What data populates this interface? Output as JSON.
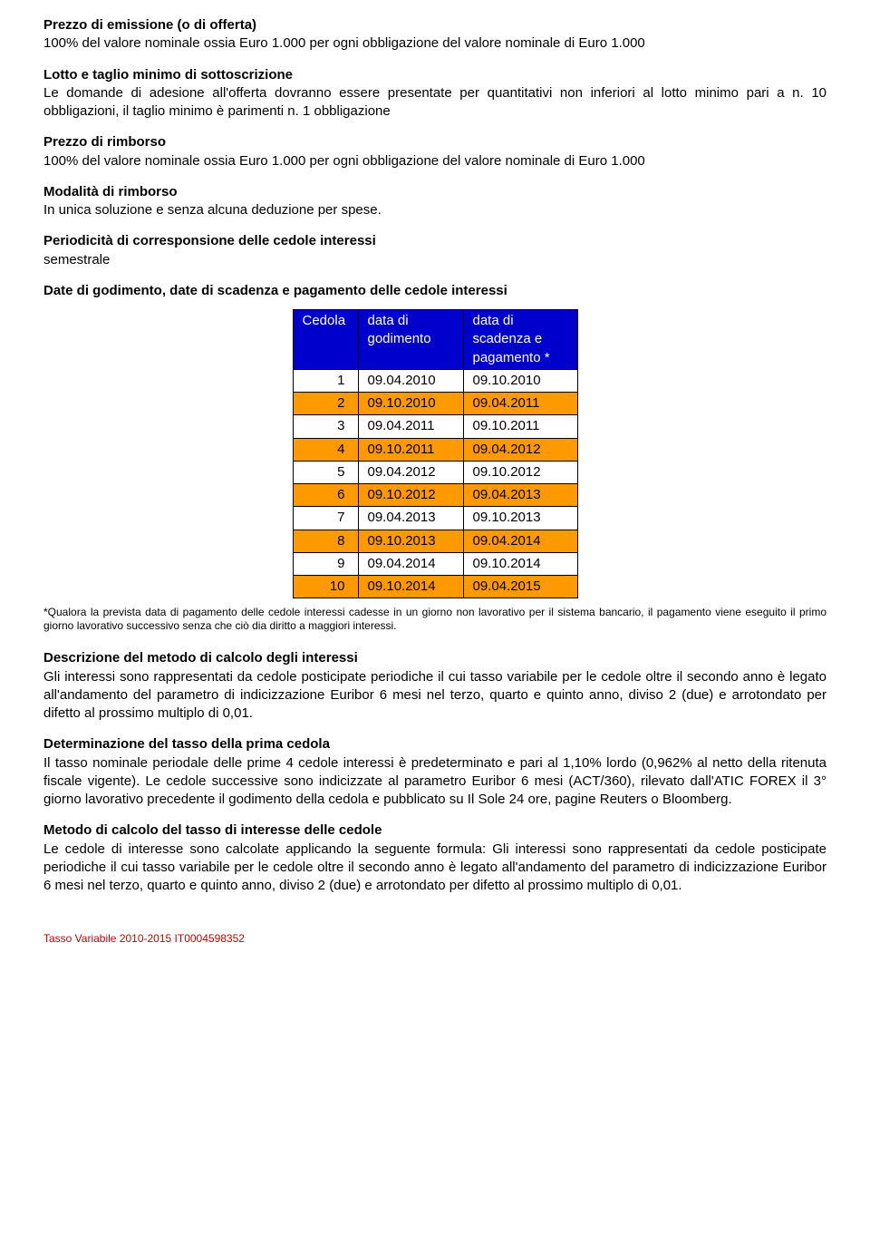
{
  "colors": {
    "blue": "#0000cc",
    "orange": "#ff9900",
    "white": "#ffffff",
    "black": "#000000",
    "red": "#cc0000"
  },
  "sections": {
    "prezzo_emissione": {
      "title": "Prezzo di emissione (o di offerta)",
      "body": "100% del valore nominale ossia Euro 1.000 per ogni obbligazione del valore nominale di Euro 1.000"
    },
    "lotto": {
      "title": "Lotto e taglio minimo di sottoscrizione",
      "body": "Le domande di adesione all'offerta dovranno essere presentate per quantitativi non inferiori al lotto minimo pari a n. 10 obbligazioni, il taglio minimo è parimenti n. 1 obbligazione"
    },
    "prezzo_rimborso": {
      "title": "Prezzo di rimborso",
      "body": "100% del valore nominale ossia Euro 1.000 per ogni obbligazione del valore nominale di Euro 1.000"
    },
    "modalita": {
      "title": "Modalità di rimborso",
      "body": "In unica soluzione e senza alcuna deduzione per spese."
    },
    "periodicita": {
      "title": "Periodicità di corresponsione delle cedole interessi",
      "body": "semestrale"
    },
    "date_heading": "Date di godimento, date di scadenza e pagamento delle cedole interessi",
    "footnote": "*Qualora la prevista data di pagamento delle cedole interessi cadesse in un giorno non lavorativo per il sistema bancario, il pagamento viene eseguito il primo giorno lavorativo successivo senza che ciò dia diritto a maggiori interessi.",
    "descrizione": {
      "title": "Descrizione del metodo di calcolo degli interessi",
      "body": "Gli interessi sono rappresentati da cedole posticipate periodiche il cui tasso variabile per le cedole oltre il secondo anno è legato all'andamento del parametro di indicizzazione Euribor 6 mesi nel terzo, quarto e quinto anno, diviso 2 (due) e arrotondato per difetto al prossimo multiplo di 0,01."
    },
    "determinazione": {
      "title": "Determinazione del tasso della prima cedola",
      "body": "Il tasso nominale periodale delle prime 4 cedole interessi è predeterminato e pari al 1,10% lordo (0,962% al netto della ritenuta fiscale vigente). Le cedole successive sono indicizzate al parametro Euribor 6 mesi (ACT/360), rilevato dall'ATIC FOREX il 3° giorno lavorativo precedente il godimento della cedola e pubblicato su Il Sole 24 ore, pagine Reuters o Bloomberg."
    },
    "metodo": {
      "title": "Metodo di calcolo del tasso di interesse delle cedole",
      "body": "Le cedole di interesse sono calcolate applicando la seguente formula: Gli interessi sono rappresentati da cedole posticipate periodiche il cui tasso variabile per le cedole oltre il secondo anno è legato all'andamento del parametro di indicizzazione Euribor 6 mesi nel terzo, quarto e quinto anno, diviso 2 (due) e arrotondato per difetto al prossimo multiplo di 0,01."
    }
  },
  "table": {
    "header": {
      "c1": "Cedola",
      "c2": "data di godimento",
      "c3": "data di scadenza e pagamento *"
    },
    "header_bg": "#0000cc",
    "col_widths": [
      "72px",
      "116px",
      "126px"
    ],
    "rows": [
      {
        "n": "1",
        "g": "09.04.2010",
        "s": "09.10.2010",
        "hl": false
      },
      {
        "n": "2",
        "g": "09.10.2010",
        "s": "09.04.2011",
        "hl": true
      },
      {
        "n": "3",
        "g": "09.04.2011",
        "s": "09.10.2011",
        "hl": false
      },
      {
        "n": "4",
        "g": "09.10.2011",
        "s": "09.04.2012",
        "hl": true
      },
      {
        "n": "5",
        "g": "09.04.2012",
        "s": "09.10.2012",
        "hl": false
      },
      {
        "n": "6",
        "g": "09.10.2012",
        "s": "09.04.2013",
        "hl": true
      },
      {
        "n": "7",
        "g": "09.04.2013",
        "s": "09.10.2013",
        "hl": false
      },
      {
        "n": "8",
        "g": "09.10.2013",
        "s": "09.04.2014",
        "hl": true
      },
      {
        "n": "9",
        "g": "09.04.2014",
        "s": "09.10.2014",
        "hl": false
      },
      {
        "n": "10",
        "g": "09.10.2014",
        "s": "09.04.2015",
        "hl": true
      }
    ],
    "highlight_bg": "#ff9900"
  },
  "footer": "Tasso Variabile 2010-2015 IT0004598352"
}
